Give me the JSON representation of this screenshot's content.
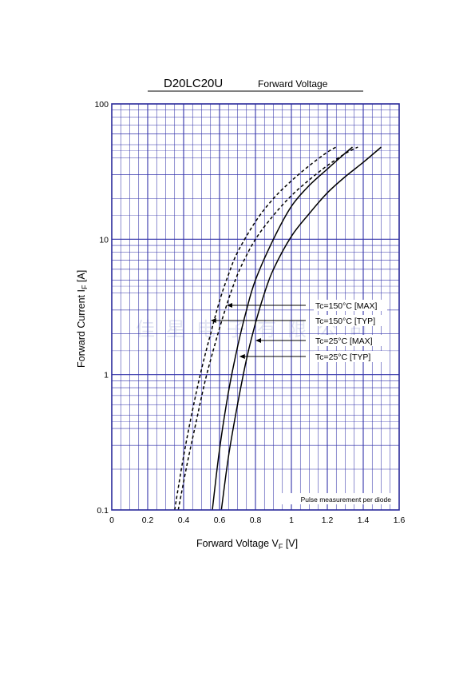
{
  "chart_data": {
    "type": "line",
    "title": "D20LC20U",
    "subtitle": "Forward Voltage",
    "xlabel": {
      "main": "Forward Voltage  V",
      "sub": "F",
      "unit": "  [V]"
    },
    "ylabel": {
      "main": "Forward Current  I",
      "sub": "F",
      "unit": "  [A]"
    },
    "x_scale": "linear",
    "y_scale": "log",
    "xlim": [
      0,
      1.6
    ],
    "ylim": [
      0.1,
      100
    ],
    "x_ticks": [
      "0",
      "0.2",
      "0.4",
      "0.6",
      "0.8",
      "1",
      "1.2",
      "1.4",
      "1.6"
    ],
    "y_ticks": [
      "0.1",
      "1",
      "10",
      "100"
    ],
    "grid": true,
    "annotation": "Pulse measurement per diode",
    "series": [
      {
        "name": "Tc=150°C [MAX]",
        "style": "dashed",
        "x": [
          0.35,
          0.4,
          0.45,
          0.5,
          0.55,
          0.6,
          0.65,
          0.7,
          0.8,
          0.9,
          1.0,
          1.1,
          1.2,
          1.25
        ],
        "y": [
          0.1,
          0.25,
          0.55,
          1.1,
          2.0,
          3.5,
          5.5,
          8.0,
          13.5,
          20.0,
          27.0,
          35.0,
          44.0,
          48.0
        ],
        "label_at": {
          "x": 0.64,
          "y": 3.0
        }
      },
      {
        "name": "Tc=150°C [TYP]",
        "style": "dashed",
        "x": [
          0.37,
          0.42,
          0.47,
          0.52,
          0.57,
          0.62,
          0.67,
          0.72,
          0.8,
          0.9,
          1.0,
          1.1,
          1.2,
          1.3,
          1.37
        ],
        "y": [
          0.1,
          0.22,
          0.45,
          0.9,
          1.6,
          2.7,
          4.3,
          6.3,
          10.0,
          15.0,
          21.0,
          27.5,
          35.0,
          43.0,
          48.0
        ],
        "label_at": {
          "x": 0.55,
          "y": 2.35
        }
      },
      {
        "name": "Tc=25°C [MAX]",
        "style": "solid",
        "x": [
          0.56,
          0.6,
          0.65,
          0.7,
          0.75,
          0.8,
          0.9,
          1.0,
          1.1,
          1.2,
          1.27,
          1.34
        ],
        "y": [
          0.1,
          0.28,
          0.75,
          1.6,
          3.0,
          5.0,
          10.0,
          17.5,
          25.0,
          33.0,
          40.0,
          48.0
        ],
        "label_at": {
          "x": 0.8,
          "y": 1.7
        }
      },
      {
        "name": "Tc=25°C [TYP]",
        "style": "solid",
        "x": [
          0.61,
          0.65,
          0.7,
          0.75,
          0.8,
          0.85,
          0.9,
          1.0,
          1.1,
          1.2,
          1.3,
          1.4,
          1.5
        ],
        "y": [
          0.1,
          0.25,
          0.6,
          1.3,
          2.4,
          4.0,
          6.0,
          10.5,
          15.5,
          22.0,
          29.0,
          37.0,
          48.0
        ],
        "label_at": {
          "x": 0.71,
          "y": 1.25
        }
      }
    ],
    "colors": {
      "grid": "#3333aa",
      "frame": "#2a2a9a",
      "curve": "#000000"
    }
  },
  "watermark": "佳星电子有限公司"
}
